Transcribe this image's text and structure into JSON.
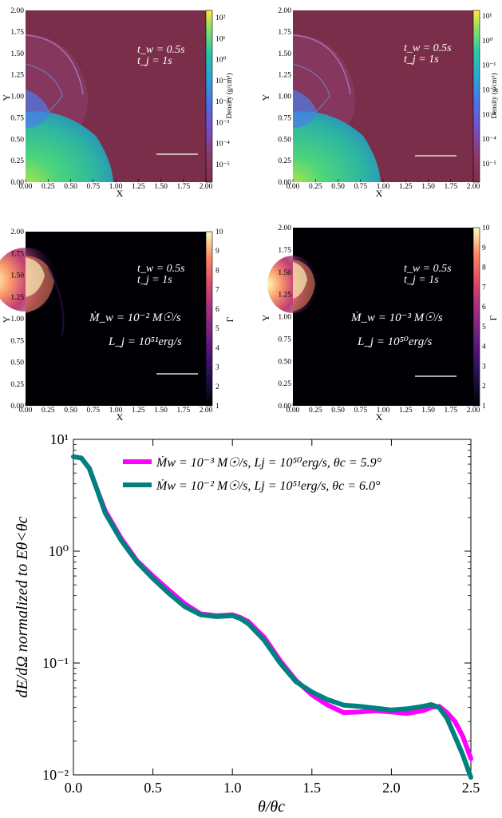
{
  "panels": [
    {
      "id": "density-left",
      "colormap": "viridis",
      "background": "#7a2e4a",
      "colorbar_label": "Density (g/cm³)",
      "colorbar_ticks": [
        "10²",
        "10¹",
        "10⁰",
        "10⁻¹",
        "10⁻²",
        "10⁻³",
        "10⁻⁴",
        "10⁻⁵"
      ],
      "annotation_lines": [
        "t_w = 0.5s",
        "t_j = 1s"
      ],
      "x_ticks": [
        "0.00",
        "0.25",
        "0.50",
        "0.75",
        "1.00",
        "1.25",
        "1.50",
        "1.75",
        "2.00"
      ],
      "y_ticks": [
        "2.00",
        "1.75",
        "1.50",
        "1.25",
        "1.00",
        "0.75",
        "0.50",
        "0.25",
        "0.00"
      ],
      "xlabel": "X",
      "ylabel": "Y"
    },
    {
      "id": "density-right",
      "colormap": "viridis",
      "background": "#7a2e4a",
      "colorbar_label": "Density (g/cm³)",
      "colorbar_ticks": [
        "10¹",
        "10⁰",
        "10⁻¹",
        "10⁻²",
        "10⁻³",
        "10⁻⁴",
        "10⁻⁵"
      ],
      "annotation_lines": [
        "t_w = 0.5s",
        "t_j = 1s"
      ],
      "x_ticks": [
        "0.00",
        "0.25",
        "0.50",
        "0.75",
        "1.00",
        "1.25",
        "1.50",
        "1.75",
        "2.00"
      ],
      "y_ticks": [
        "2.00",
        "1.75",
        "1.50",
        "1.25",
        "1.00",
        "0.75",
        "0.50",
        "0.25",
        "0.00"
      ],
      "xlabel": "X",
      "ylabel": "Y"
    },
    {
      "id": "lorentz-left",
      "colormap": "magma",
      "background": "#000004",
      "colorbar_label": "Γ",
      "colorbar_ticks": [
        "10",
        "9",
        "8",
        "7",
        "6",
        "5",
        "4",
        "3",
        "2",
        "1"
      ],
      "annotation_lines": [
        "t_w = 0.5s",
        "t_j = 1s",
        "Ṁ_w = 10⁻² M☉/s",
        "L_j = 10⁵¹erg/s"
      ],
      "x_ticks": [
        "0.00",
        "0.25",
        "0.50",
        "0.75",
        "1.00",
        "1.25",
        "1.50",
        "1.75",
        "2.00"
      ],
      "y_ticks": [
        "2.00",
        "1.75",
        "1.50",
        "1.25",
        "1.00",
        "0.75",
        "0.50",
        "0.25",
        "0.00"
      ],
      "xlabel": "X",
      "ylabel": "Y"
    },
    {
      "id": "lorentz-right",
      "colormap": "magma",
      "background": "#000004",
      "colorbar_label": "Γ",
      "colorbar_ticks": [
        "10",
        "9",
        "8",
        "7",
        "6",
        "5",
        "4",
        "3",
        "2",
        "1"
      ],
      "annotation_lines": [
        "t_w = 0.5s",
        "t_j = 1s",
        "Ṁ_w = 10⁻³ M☉/s",
        "L_j = 10⁵⁰erg/s"
      ],
      "x_ticks": [
        "0.00",
        "0.25",
        "0.50",
        "0.75",
        "1.00",
        "1.25",
        "1.50",
        "1.75",
        "2.00"
      ],
      "y_ticks": [
        "2.00",
        "1.75",
        "1.50",
        "1.25",
        "1.00",
        "0.75",
        "0.50",
        "0.25",
        "0.00"
      ],
      "xlabel": "X",
      "ylabel": "Y"
    }
  ],
  "chart_data": {
    "type": "line",
    "xlabel": "θ/θc",
    "ylabel": "dE/dΩ normalized to Eθ<θc",
    "xlim": [
      0.0,
      2.5
    ],
    "ylim": [
      0.01,
      10
    ],
    "yscale": "log",
    "x_tick_labels": [
      "0.0",
      "0.5",
      "1.0",
      "1.5",
      "2.0",
      "2.5"
    ],
    "y_tick_labels": [
      "10¹",
      "10⁰",
      "10⁻¹",
      "10⁻²"
    ],
    "legend_position": "top-right",
    "series": [
      {
        "name": "Ṁw = 10⁻³ M☉/s, Lj = 10⁵⁰erg/s, θc = 5.9°",
        "color": "#ff00ff",
        "x": [
          0.0,
          0.05,
          0.1,
          0.15,
          0.2,
          0.3,
          0.4,
          0.5,
          0.6,
          0.7,
          0.8,
          0.9,
          1.0,
          1.05,
          1.1,
          1.2,
          1.3,
          1.4,
          1.5,
          1.6,
          1.7,
          1.8,
          1.9,
          2.0,
          2.1,
          2.2,
          2.25,
          2.3,
          2.35,
          2.4,
          2.45,
          2.5
        ],
        "y": [
          7.0,
          6.8,
          5.5,
          3.5,
          2.3,
          1.3,
          0.82,
          0.6,
          0.45,
          0.34,
          0.275,
          0.265,
          0.27,
          0.255,
          0.235,
          0.17,
          0.105,
          0.07,
          0.052,
          0.042,
          0.036,
          0.0365,
          0.0375,
          0.0365,
          0.0355,
          0.0375,
          0.04,
          0.041,
          0.036,
          0.03,
          0.022,
          0.014
        ]
      },
      {
        "name": "Ṁw = 10⁻² M☉/s, Lj = 10⁵¹erg/s, θc = 6.0°",
        "color": "#00807f",
        "x": [
          0.0,
          0.05,
          0.1,
          0.15,
          0.2,
          0.3,
          0.4,
          0.5,
          0.6,
          0.7,
          0.8,
          0.9,
          1.0,
          1.05,
          1.1,
          1.2,
          1.3,
          1.4,
          1.5,
          1.6,
          1.7,
          1.8,
          1.9,
          2.0,
          2.1,
          2.2,
          2.25,
          2.3,
          2.35,
          2.4,
          2.45,
          2.5
        ],
        "y": [
          7.0,
          6.8,
          5.5,
          3.5,
          2.2,
          1.25,
          0.8,
          0.57,
          0.42,
          0.32,
          0.27,
          0.26,
          0.265,
          0.25,
          0.225,
          0.16,
          0.1,
          0.068,
          0.055,
          0.047,
          0.042,
          0.041,
          0.0395,
          0.038,
          0.039,
          0.041,
          0.0425,
          0.04,
          0.032,
          0.022,
          0.015,
          0.0095
        ]
      }
    ]
  }
}
